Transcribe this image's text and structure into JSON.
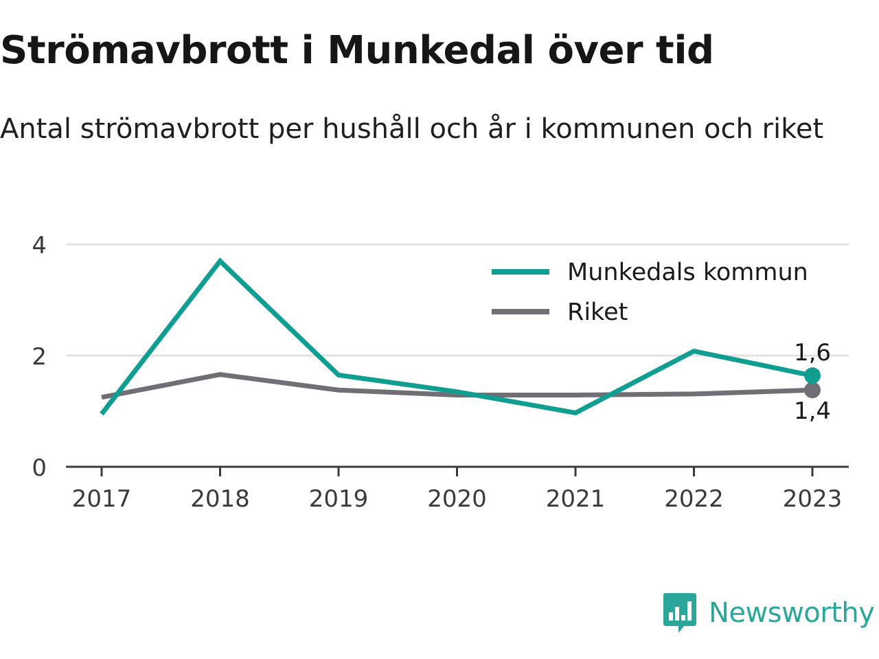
{
  "title": "Strömavbrott i Munkedal över tid",
  "subtitle": "Antal strömavbrott per hushåll och år i kommunen och riket",
  "brand": {
    "name": "Newsworthy",
    "icon": "newsworthy-logo-icon",
    "color": "#2aa79a"
  },
  "chart_data": {
    "type": "line",
    "x": [
      "2017",
      "2018",
      "2019",
      "2020",
      "2021",
      "2022",
      "2023"
    ],
    "series": [
      {
        "name": "Munkedals kommun",
        "color": "#0f9e91",
        "values": [
          0.95,
          3.7,
          1.65,
          1.35,
          0.97,
          2.08,
          1.64
        ],
        "end_label": "1,6"
      },
      {
        "name": "Riket",
        "color": "#6f6f75",
        "values": [
          1.25,
          1.66,
          1.38,
          1.29,
          1.29,
          1.31,
          1.38
        ],
        "end_label": "1,4"
      }
    ],
    "y_ticks": [
      "0",
      "2",
      "4"
    ],
    "ylim": [
      0,
      4
    ],
    "grid": true,
    "legend_position": "top-right"
  }
}
